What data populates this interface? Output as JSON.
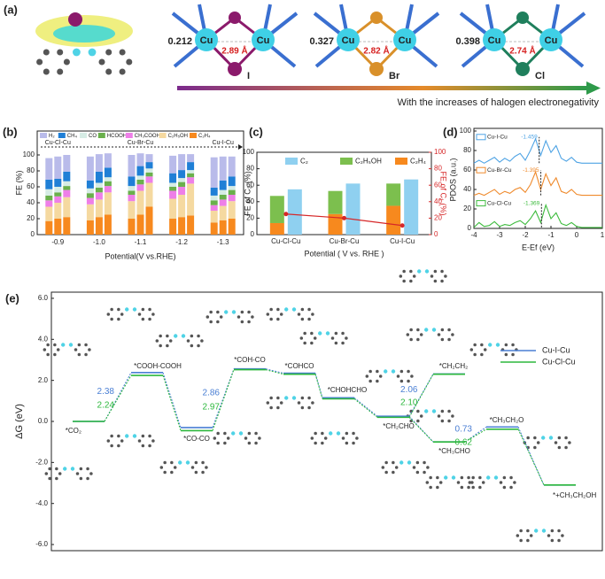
{
  "panel_a": {
    "label": "(a)",
    "structures": [
      {
        "charge": "0.212",
        "atoms": [
          "Cu",
          "Cu"
        ],
        "distance": "2.89 Å",
        "halogen": "I"
      },
      {
        "charge": "0.327",
        "atoms": [
          "Cu",
          "Cu"
        ],
        "distance": "2.82 Å",
        "halogen": "Br"
      },
      {
        "charge": "0.398",
        "atoms": [
          "Cu",
          "Cu"
        ],
        "distance": "2.74 Å",
        "halogen": "Cl"
      }
    ],
    "caption": "With the increases of halogen electronegativity"
  },
  "chart_data": [
    {
      "type": "stacked_bar",
      "label": "(b)",
      "ylabel": "FE (%)",
      "xlabel": "Potential(V vs.RHE)",
      "categories": [
        "-0.9",
        "-1.0",
        "-1.1",
        "-1.2",
        "-1.3"
      ],
      "groups": [
        "Cu-Cl-Cu",
        "Cu-Br-Cu",
        "Cu-I-Cu"
      ],
      "ylim": [
        0,
        130
      ],
      "yticks": [
        0,
        20,
        40,
        60,
        80,
        100
      ],
      "series": [
        {
          "name": "H₂",
          "color": "#b9bbea",
          "values": [
            [
              27,
              28,
              21
            ],
            [
              30,
              22,
              18
            ],
            [
              27,
              16,
              10
            ],
            [
              22,
              20,
              10
            ],
            [
              38,
              30,
              25
            ]
          ]
        },
        {
          "name": "CH₄",
          "color": "#1f7fd6",
          "values": [
            [
              12,
              10,
              12
            ],
            [
              10,
              14,
              12
            ],
            [
              12,
              12,
              8
            ],
            [
              12,
              10,
              10
            ],
            [
              10,
              12,
              12
            ]
          ]
        },
        {
          "name": "CO",
          "color": "#d6ece5",
          "values": [
            [
              8,
              7,
              6
            ],
            [
              6,
              6,
              5
            ],
            [
              6,
              5,
              5
            ],
            [
              5,
              5,
              4
            ],
            [
              6,
              6,
              5
            ]
          ]
        },
        {
          "name": "HCOOH",
          "color": "#6ab04c",
          "values": [
            [
              6,
              5,
              5
            ],
            [
              6,
              6,
              6
            ],
            [
              5,
              6,
              5
            ],
            [
              5,
              6,
              5
            ],
            [
              6,
              6,
              6
            ]
          ]
        },
        {
          "name": "CH₃COOH",
          "color": "#ee7fe8",
          "values": [
            [
              8,
              8,
              9
            ],
            [
              8,
              9,
              8
            ],
            [
              8,
              8,
              8
            ],
            [
              10,
              10,
              8
            ],
            [
              7,
              8,
              8
            ]
          ]
        },
        {
          "name": "C₂H₅OH",
          "color": "#f5d9a0",
          "values": [
            [
              18,
              20,
              25
            ],
            [
              20,
              22,
              28
            ],
            [
              22,
              30,
              30
            ],
            [
              25,
              28,
              40
            ],
            [
              15,
              18,
              22
            ]
          ]
        },
        {
          "name": "C₂H₄",
          "color": "#f7891e",
          "values": [
            [
              17,
              20,
              22
            ],
            [
              18,
              22,
              25
            ],
            [
              20,
              25,
              35
            ],
            [
              20,
              22,
              24
            ],
            [
              15,
              18,
              20
            ]
          ]
        }
      ]
    },
    {
      "type": "bar_line",
      "label": "(c)",
      "ylabel": "FE of C₂ (%)",
      "y2label": "FE of C₁ (%)",
      "xlabel": "Potential ( V vs. RHE )",
      "categories": [
        "Cu-Cl-Cu",
        "Cu-Br-Cu",
        "Cu-I-Cu"
      ],
      "ylim": [
        0,
        100
      ],
      "yticks": [
        0,
        20,
        40,
        60,
        80,
        100
      ],
      "y2lim": [
        0,
        100
      ],
      "y2ticks": [
        0,
        20,
        40,
        60,
        80,
        100
      ],
      "series": [
        {
          "name": "C₂",
          "color": "#8fd0f0",
          "values": [
            55,
            62,
            67
          ]
        },
        {
          "name": "C₂H₅OH",
          "color": "#7cbf4e",
          "values": [
            33,
            28,
            27
          ]
        },
        {
          "name": "C₂H₄",
          "color": "#f7891e",
          "values": [
            14,
            25,
            35
          ]
        }
      ],
      "c1_line": {
        "color": "#d62728",
        "axis": "y2",
        "values": [
          25,
          20,
          11
        ]
      }
    },
    {
      "type": "pdos",
      "label": "(d)",
      "ylabel": "PDOS (a.u.)",
      "xlabel": "E-Ef (eV)",
      "x": [
        -4,
        -3.8,
        -3.6,
        -3.4,
        -3.2,
        -3,
        -2.8,
        -2.6,
        -2.4,
        -2.2,
        -2,
        -1.8,
        -1.6,
        -1.4,
        -1.2,
        -1,
        -0.8,
        -0.6,
        -0.4,
        -0.2,
        0,
        0.2,
        0.4,
        0.6,
        0.8,
        1
      ],
      "xlim": [
        -4,
        1
      ],
      "xticks": [
        -4,
        -3,
        -2,
        -1,
        0,
        1
      ],
      "ylim": [
        0,
        100
      ],
      "yticks": [
        0,
        20,
        40,
        60,
        80,
        100
      ],
      "series": [
        {
          "name": "Cu-I-Cu",
          "color": "#4ea3e4",
          "d_band_center": -1.459,
          "values": [
            67,
            70,
            67,
            70,
            73,
            68,
            72,
            69,
            74,
            77,
            70,
            80,
            92,
            75,
            90,
            78,
            85,
            72,
            69,
            73,
            68,
            67,
            67,
            67,
            67,
            67
          ]
        },
        {
          "name": "Cu-Br-Cu",
          "color": "#ef8a2c",
          "d_band_center": -1.395,
          "values": [
            34,
            36,
            34,
            37,
            40,
            35,
            38,
            36,
            40,
            42,
            37,
            45,
            58,
            40,
            56,
            44,
            52,
            38,
            36,
            40,
            35,
            34,
            34,
            34,
            34,
            34
          ]
        },
        {
          "name": "Cu-Cl-Cu",
          "color": "#3dbb3d",
          "d_band_center": -1.369,
          "values": [
            1,
            6,
            2,
            3,
            7,
            2,
            4,
            3,
            6,
            8,
            4,
            10,
            18,
            6,
            24,
            10,
            16,
            5,
            3,
            6,
            2,
            1,
            1,
            1,
            1,
            1
          ]
        }
      ]
    },
    {
      "type": "energy",
      "label": "(e)",
      "ylabel": "ΔG (eV)",
      "categories": [
        "*CO₂",
        "*COOH-COOH",
        "*CO-CO",
        "*COH-CO",
        "*COHCO",
        "*CHOHCHO",
        "*CH₂CHO",
        "*CH₂CH₂",
        "*CH₃CHO",
        "*CH₃CH₂O",
        "*+CH₃CH₂OH"
      ],
      "ylim": [
        -6.3,
        6.3
      ],
      "yticks": [
        {
          "value": 6,
          "label": "6.0"
        },
        {
          "value": 4,
          "label": "4.0"
        },
        {
          "value": 2,
          "label": "2.0"
        },
        {
          "value": 0,
          "label": "0.0"
        },
        {
          "value": -2,
          "label": "-2.0"
        },
        {
          "value": -4,
          "label": "-4.0"
        },
        {
          "value": -6,
          "label": "-6.0"
        }
      ],
      "series": [
        {
          "name": "Cu-I-Cu",
          "color": "#4a7fd4",
          "values": [
            0,
            2.38,
            -0.3,
            2.56,
            2.35,
            1.15,
            0.25,
            2.31,
            -1.0,
            -0.27,
            -3.1
          ],
          "step_labels": [
            null,
            "2.38",
            null,
            "2.86",
            null,
            null,
            null,
            "2.06",
            null,
            "0.73",
            null
          ]
        },
        {
          "name": "Cu-Cl-Cu",
          "color": "#2db83d",
          "values": [
            0,
            2.24,
            -0.45,
            2.52,
            2.3,
            1.1,
            0.2,
            2.3,
            -1.0,
            -0.38,
            -3.1
          ],
          "step_labels": [
            null,
            "2.24",
            null,
            "2.97",
            null,
            null,
            null,
            "2.10",
            null,
            "0.62",
            null
          ]
        }
      ]
    }
  ]
}
